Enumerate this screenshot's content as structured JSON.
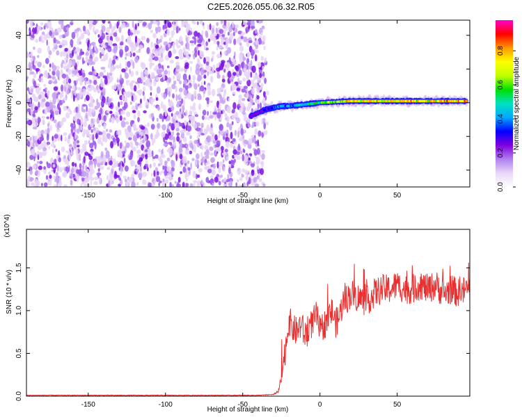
{
  "title": "C2E5.2026.055.06.32.R05",
  "chart_data": [
    {
      "type": "heatmap",
      "xlabel": "Height of straight line (km)",
      "ylabel": "Frequency (Hz)",
      "xlim": [
        -190,
        97
      ],
      "ylim": [
        -50,
        49
      ],
      "x_ticks": [
        -150,
        -100,
        -50,
        0,
        50
      ],
      "y_ticks": [
        -40,
        -20,
        0,
        20,
        40
      ],
      "colorbar": {
        "label": "Normalized spectral amplitude",
        "range": [
          0,
          0.98
        ],
        "ticks": [
          "0.0",
          "0.2",
          "0.4",
          "0.6",
          "0.8"
        ],
        "colormap": [
          "#ffffff",
          "#e8d6f8",
          "#b080f0",
          "#8000e0",
          "#0000ff",
          "#00aaff",
          "#00e0c0",
          "#00e000",
          "#c0ff00",
          "#ffff00",
          "#ff9900",
          "#ff0000",
          "#ff00cc"
        ]
      },
      "noise_region_x": [
        -190,
        -35
      ],
      "signal_track": {
        "x": [
          -45,
          -40,
          -35,
          -30,
          -25,
          -20,
          -15,
          -10,
          -5,
          0,
          10,
          20,
          30,
          40,
          50,
          60,
          70,
          80,
          90,
          95
        ],
        "freq": [
          -8,
          -6,
          -4,
          -3,
          -2,
          -2,
          -1.5,
          -1,
          -0.5,
          0,
          0.5,
          1,
          1,
          1,
          1,
          1,
          1,
          1,
          1,
          1
        ],
        "amplitude": [
          0.2,
          0.3,
          0.35,
          0.45,
          0.55,
          0.5,
          0.55,
          0.6,
          0.6,
          0.7,
          0.8,
          0.9,
          0.9,
          0.85,
          0.9,
          0.95,
          0.9,
          0.95,
          0.95,
          0.95
        ]
      }
    },
    {
      "type": "line",
      "xlabel": "Height of straight line (km)",
      "ylabel": "SNR (10 * v/v)",
      "y_multiplier": "(x10^4)",
      "xlim": [
        -190,
        97
      ],
      "ylim": [
        0,
        1.95
      ],
      "x_ticks": [
        -150,
        -100,
        -50,
        0,
        50
      ],
      "y_ticks": [
        "0.0",
        "0.5",
        "1.0",
        "1.5"
      ],
      "color": "#e83030",
      "series": [
        {
          "x": [
            -190,
            -40,
            -30,
            -27,
            -25,
            -22,
            -20,
            -18,
            -15,
            -12,
            -10,
            -8,
            -5,
            -2,
            0,
            3,
            5,
            8,
            10,
            12,
            15,
            18,
            20,
            25,
            30,
            35,
            40,
            45,
            50,
            55,
            60,
            65,
            70,
            75,
            80,
            85,
            90,
            95
          ],
          "y": [
            0.01,
            0.01,
            0.02,
            0.05,
            0.2,
            0.6,
            0.9,
            0.8,
            0.75,
            0.85,
            0.7,
            0.8,
            0.85,
            0.95,
            0.75,
            0.85,
            0.9,
            1.0,
            0.85,
            0.9,
            1.1,
            1.15,
            1.2,
            1.15,
            1.1,
            1.2,
            1.25,
            1.25,
            1.3,
            1.25,
            1.25,
            1.3,
            1.25,
            1.3,
            1.2,
            1.25,
            1.2,
            1.25
          ]
        }
      ]
    }
  ]
}
